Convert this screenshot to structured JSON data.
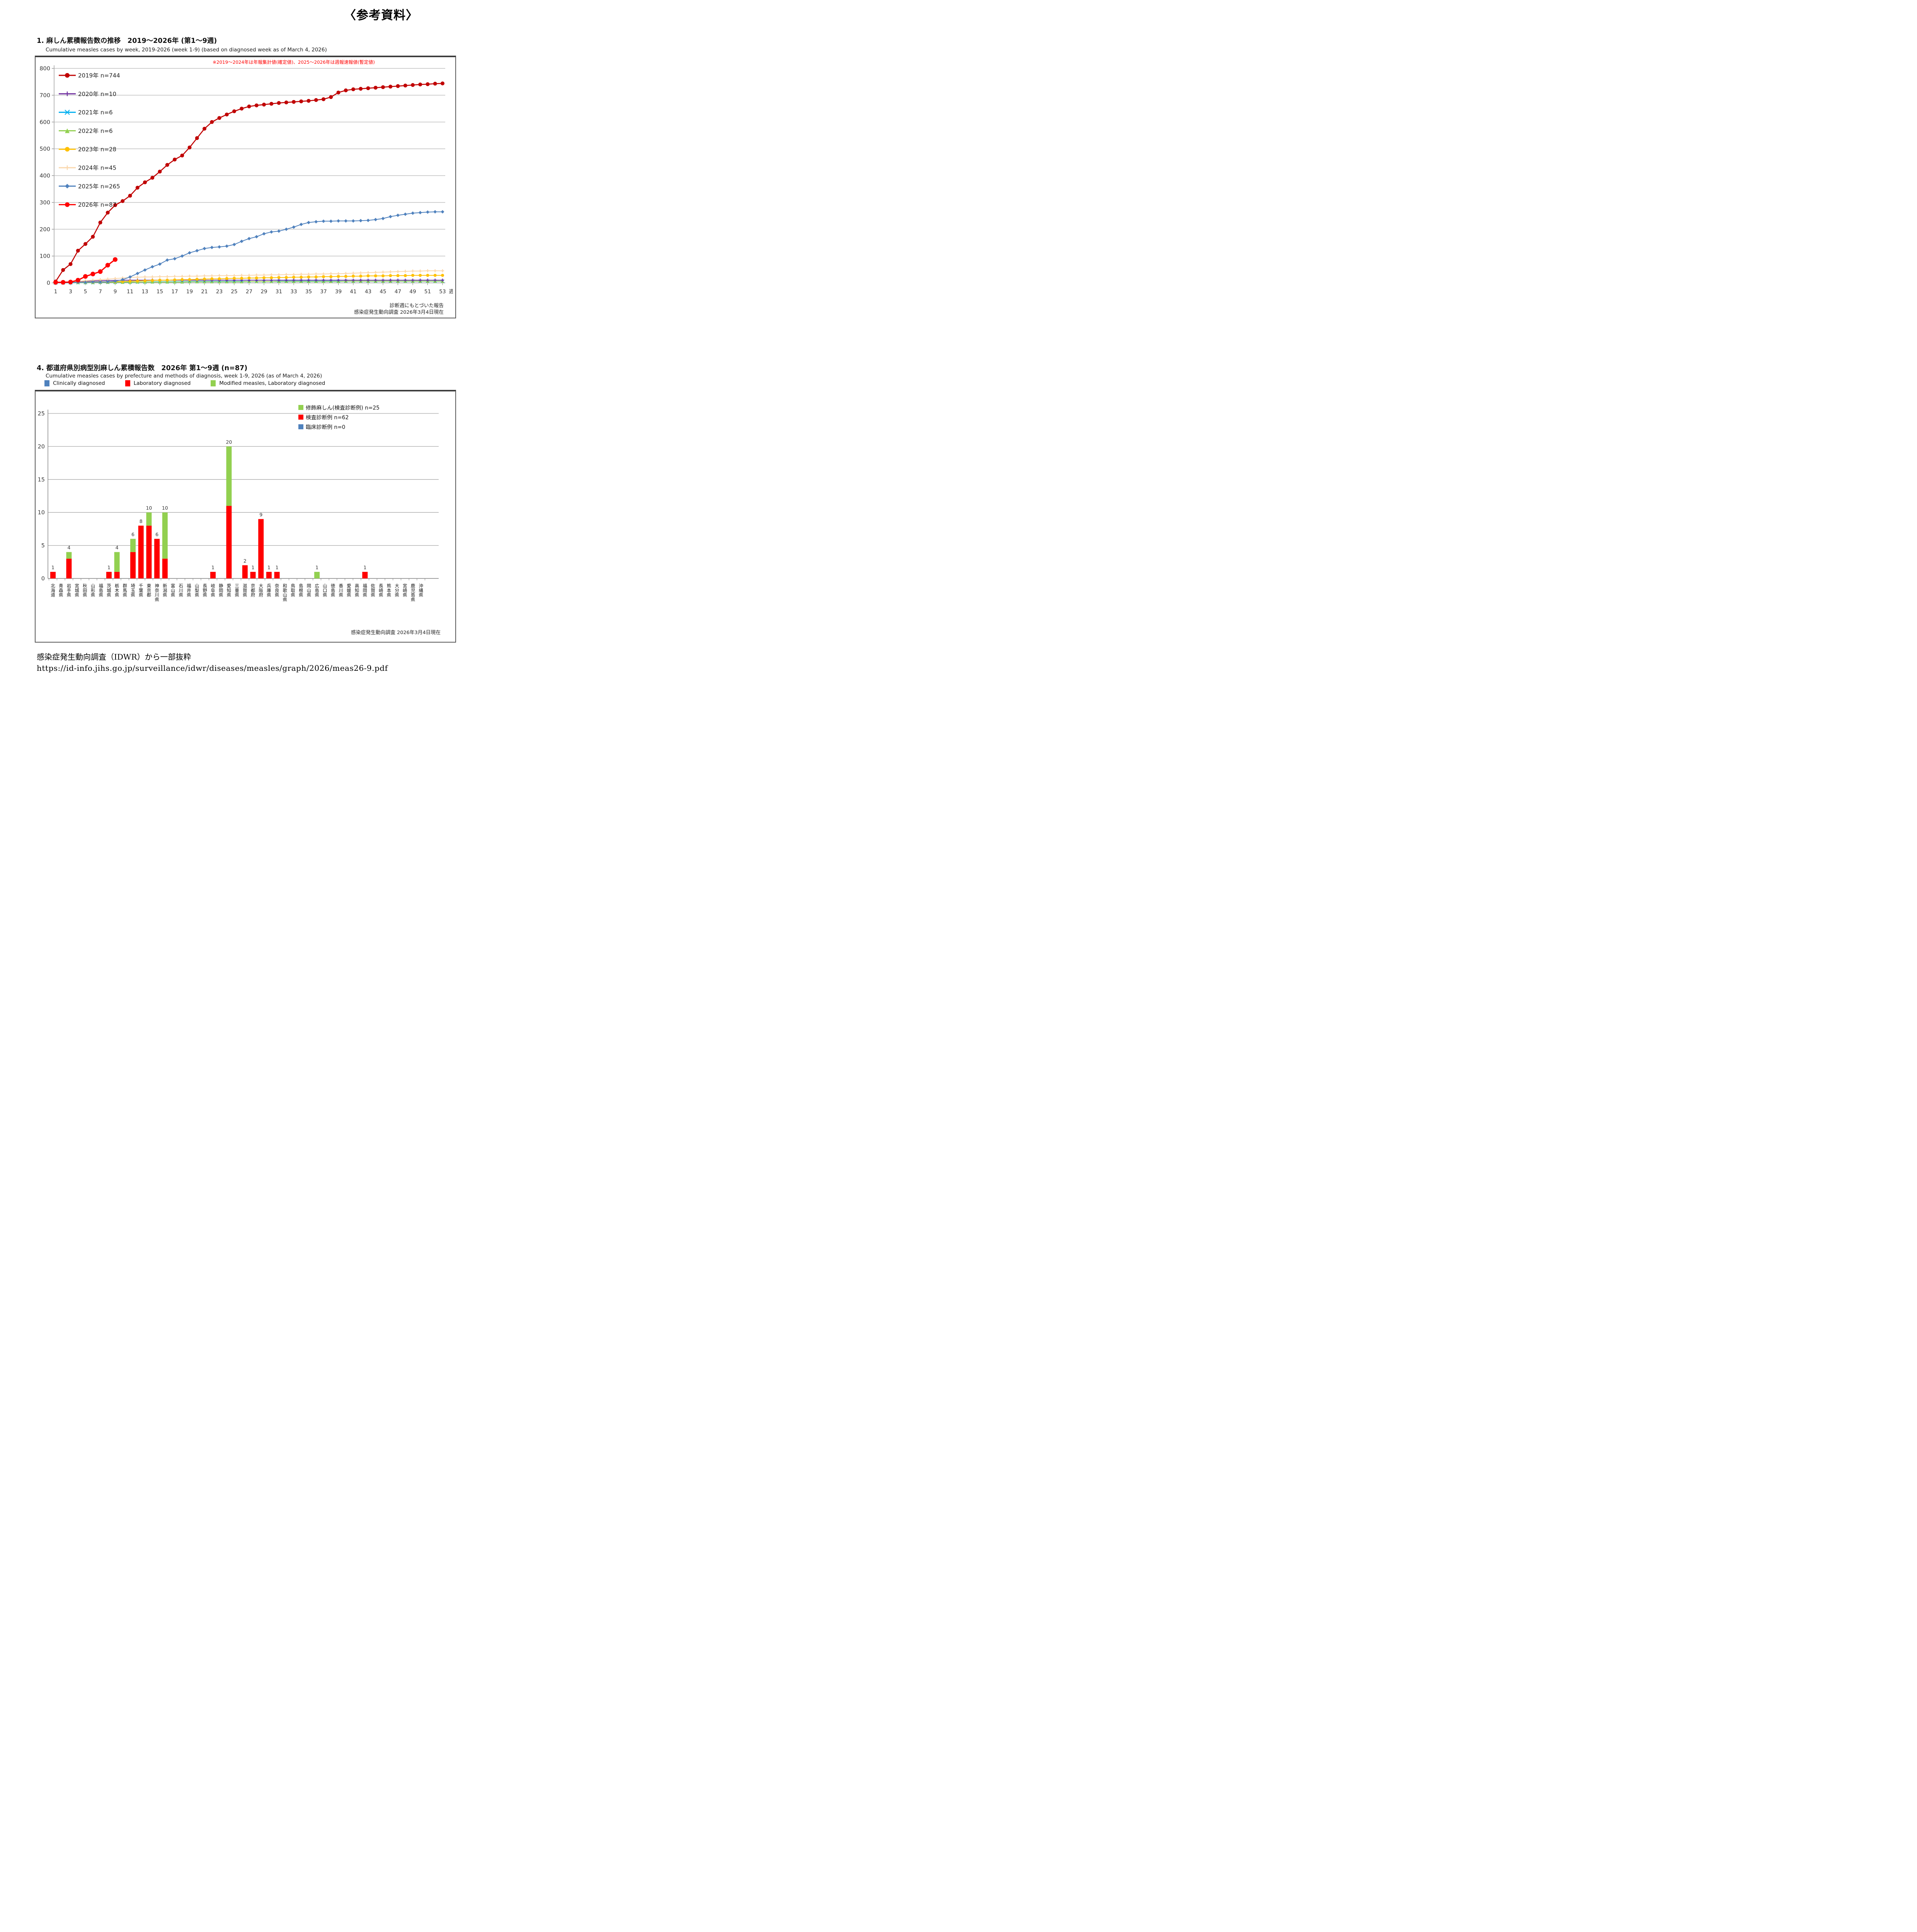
{
  "page": {
    "ref_label": "〈参考資料〉",
    "footer": {
      "source_line": "感染症発生動向調査（IDWR）から一部抜粋",
      "url": "https://id-info.jihs.go.jp/surveillance/idwr/diseases/measles/graph/2026/meas26-9.pdf"
    }
  },
  "section1": {
    "title": "1. 麻しん累積報告数の推移　2019～2026年 (第1～9週)",
    "subtitle": "Cumulative measles cases by week, 2019-2026 (week 1-9)  (based on diagnosed week as of March 4, 2026)",
    "note": "※2019～2024年は年報集計値(確定値)、2025～2026年は週報速報値(暫定値)",
    "footnote1": "診断週にもとづいた報告",
    "footnote2": "感染症発生動向調査 2026年3月4日現在"
  },
  "section2": {
    "title": "4. 都道府県別病型別麻しん累積報告数　2026年 第1～9週 (n=87)",
    "subtitle": "Cumulative measles cases by prefecture and methods of diagnosis, week 1-9, 2026 (as of March 4, 2026)",
    "top_legend": [
      {
        "label": "Clinically diagnosed",
        "color": "#4F81BD"
      },
      {
        "label": "Laboratory diagnosed",
        "color": "#FF0000"
      },
      {
        "label": "Modified measles, Laboratory diagnosed",
        "color": "#92D050"
      }
    ],
    "inner_legend": [
      {
        "label": "修飾麻しん(検査診断例) n=25",
        "color": "#92D050"
      },
      {
        "label": "検査診断例 n=62",
        "color": "#FF0000"
      },
      {
        "label": "臨床診断例 n=0",
        "color": "#4F81BD"
      }
    ],
    "footnote": "感染症発生動向調査 2026年3月4日現在"
  },
  "chart_data": [
    {
      "type": "line",
      "title": "麻しん累積報告数の推移 2019～2026年",
      "xlabel_unit": "週",
      "ylim": [
        0,
        800
      ],
      "yticks": [
        0,
        100,
        200,
        300,
        400,
        500,
        600,
        700,
        800
      ],
      "xticks": [
        1,
        3,
        5,
        7,
        9,
        11,
        13,
        15,
        17,
        19,
        21,
        23,
        25,
        27,
        29,
        31,
        33,
        35,
        37,
        39,
        41,
        43,
        45,
        47,
        49,
        51,
        53
      ],
      "weeks_max": 53,
      "grid": true,
      "legend_position": "upper-left-inside",
      "series": [
        {
          "name": "2019年 n=744",
          "color": "#C00000",
          "marker": "circle",
          "values": [
            5,
            48,
            70,
            120,
            145,
            172,
            225,
            262,
            290,
            305,
            325,
            355,
            375,
            392,
            415,
            440,
            460,
            475,
            505,
            540,
            575,
            600,
            615,
            628,
            640,
            650,
            658,
            662,
            665,
            668,
            671,
            673,
            675,
            677,
            679,
            682,
            685,
            693,
            710,
            718,
            722,
            724,
            726,
            728,
            730,
            732,
            734,
            736,
            738,
            740,
            741,
            743,
            744
          ]
        },
        {
          "name": "2020年 n=10",
          "color": "#7030A0",
          "marker": "plus",
          "values": [
            1,
            2,
            3,
            5,
            6,
            7,
            8,
            9,
            9,
            10,
            10,
            10,
            10,
            10,
            10,
            10,
            10,
            10,
            10,
            10,
            10,
            10,
            10,
            10,
            10,
            10,
            10,
            10,
            10,
            10,
            10,
            10,
            10,
            10,
            10,
            10,
            10,
            10,
            10,
            10,
            10,
            10,
            10,
            10,
            10,
            10,
            10,
            10,
            10,
            10,
            10,
            10,
            10
          ]
        },
        {
          "name": "2021年 n=6",
          "color": "#00B0F0",
          "marker": "x",
          "values": [
            0,
            0,
            0,
            1,
            1,
            1,
            2,
            2,
            2,
            3,
            3,
            3,
            3,
            4,
            4,
            4,
            4,
            4,
            5,
            5,
            5,
            5,
            5,
            5,
            5,
            5,
            5,
            5,
            5,
            5,
            6,
            6,
            6,
            6,
            6,
            6,
            6,
            6,
            6,
            6,
            6,
            6,
            6,
            6,
            6,
            6,
            6,
            6,
            6,
            6,
            6,
            6,
            6
          ]
        },
        {
          "name": "2022年 n=6",
          "color": "#92D050",
          "marker": "triangle",
          "values": [
            0,
            0,
            1,
            1,
            1,
            1,
            2,
            2,
            2,
            2,
            2,
            3,
            3,
            3,
            3,
            3,
            3,
            3,
            4,
            4,
            4,
            4,
            4,
            4,
            4,
            4,
            5,
            5,
            5,
            5,
            5,
            5,
            5,
            5,
            5,
            5,
            5,
            5,
            5,
            6,
            6,
            6,
            6,
            6,
            6,
            6,
            6,
            6,
            6,
            6,
            6,
            6,
            6
          ]
        },
        {
          "name": "2023年 n=28",
          "color": "#FFC000",
          "marker": "circle",
          "values": [
            1,
            1,
            2,
            2,
            3,
            3,
            4,
            4,
            5,
            5,
            6,
            7,
            8,
            9,
            10,
            10,
            11,
            12,
            12,
            13,
            14,
            15,
            15,
            16,
            17,
            17,
            18,
            18,
            19,
            19,
            20,
            20,
            21,
            21,
            22,
            22,
            23,
            23,
            24,
            24,
            25,
            25,
            26,
            26,
            26,
            27,
            27,
            27,
            28,
            28,
            28,
            28,
            28
          ]
        },
        {
          "name": "2024年 n=45",
          "color": "#FAD7AC",
          "marker": "plus",
          "values": [
            1,
            2,
            4,
            6,
            8,
            10,
            12,
            14,
            16,
            18,
            20,
            21,
            22,
            22,
            23,
            23,
            24,
            24,
            25,
            25,
            26,
            26,
            27,
            27,
            27,
            28,
            28,
            29,
            29,
            30,
            30,
            31,
            31,
            32,
            32,
            33,
            33,
            34,
            34,
            35,
            36,
            37,
            38,
            39,
            40,
            41,
            42,
            43,
            44,
            44,
            45,
            45,
            45
          ]
        },
        {
          "name": "2025年 n=265",
          "color": "#4F81BD",
          "marker": "diamond",
          "values": [
            0,
            0,
            1,
            2,
            2,
            3,
            3,
            4,
            6,
            12,
            22,
            35,
            48,
            60,
            70,
            85,
            90,
            100,
            112,
            120,
            128,
            132,
            134,
            137,
            143,
            155,
            165,
            172,
            183,
            190,
            193,
            200,
            208,
            218,
            225,
            228,
            230,
            230,
            231,
            231,
            231,
            232,
            233,
            236,
            240,
            247,
            252,
            256,
            260,
            262,
            264,
            265,
            265
          ]
        },
        {
          "name": "2026年 n=87",
          "color": "#FF0000",
          "marker": "circle",
          "values": [
            2,
            2,
            3,
            10,
            24,
            33,
            42,
            66,
            87
          ]
        }
      ]
    },
    {
      "type": "bar",
      "stacked": true,
      "title": "都道府県別病型別麻しん累積報告数 2026年 第1～9週",
      "ylim": [
        0,
        25
      ],
      "yticks": [
        0,
        5,
        10,
        15,
        20,
        25
      ],
      "grid": true,
      "categories": [
        "北海道",
        "青森県",
        "岩手県",
        "宮城県",
        "秋田県",
        "山形県",
        "福島県",
        "茨城県",
        "栃木県",
        "群馬県",
        "埼玉県",
        "千葉県",
        "東京都",
        "神奈川県",
        "新潟県",
        "富山県",
        "石川県",
        "福井県",
        "山梨県",
        "長野県",
        "岐阜県",
        "静岡県",
        "愛知県",
        "三重県",
        "滋賀県",
        "京都府",
        "大阪府",
        "兵庫県",
        "奈良県",
        "和歌山県",
        "鳥取県",
        "島根県",
        "岡山県",
        "広島県",
        "山口県",
        "徳島県",
        "香川県",
        "愛媛県",
        "高知県",
        "福岡県",
        "佐賀県",
        "長崎県",
        "熊本県",
        "大分県",
        "宮崎県",
        "鹿児島県",
        "沖縄県"
      ],
      "series": [
        {
          "name": "臨床診断例",
          "name_en": "Clinically diagnosed",
          "color": "#4F81BD",
          "values": [
            0,
            0,
            0,
            0,
            0,
            0,
            0,
            0,
            0,
            0,
            0,
            0,
            0,
            0,
            0,
            0,
            0,
            0,
            0,
            0,
            0,
            0,
            0,
            0,
            0,
            0,
            0,
            0,
            0,
            0,
            0,
            0,
            0,
            0,
            0,
            0,
            0,
            0,
            0,
            0,
            0,
            0,
            0,
            0,
            0,
            0,
            0
          ]
        },
        {
          "name": "検査診断例",
          "name_en": "Laboratory diagnosed",
          "color": "#FF0000",
          "values": [
            1,
            0,
            3,
            0,
            0,
            0,
            0,
            1,
            1,
            0,
            4,
            8,
            8,
            6,
            3,
            0,
            0,
            0,
            0,
            0,
            1,
            0,
            11,
            0,
            2,
            1,
            9,
            1,
            1,
            0,
            0,
            0,
            0,
            0,
            0,
            0,
            0,
            0,
            0,
            1,
            0,
            0,
            0,
            0,
            0,
            0,
            0
          ]
        },
        {
          "name": "修飾麻しん(検査診断例)",
          "name_en": "Modified measles, Laboratory diagnosed",
          "color": "#92D050",
          "values": [
            0,
            0,
            1,
            0,
            0,
            0,
            0,
            0,
            3,
            0,
            2,
            0,
            2,
            0,
            7,
            0,
            0,
            0,
            0,
            0,
            0,
            0,
            9,
            0,
            0,
            0,
            0,
            0,
            0,
            0,
            0,
            0,
            0,
            1,
            0,
            0,
            0,
            0,
            0,
            0,
            0,
            0,
            0,
            0,
            0,
            0,
            0
          ]
        }
      ]
    }
  ]
}
